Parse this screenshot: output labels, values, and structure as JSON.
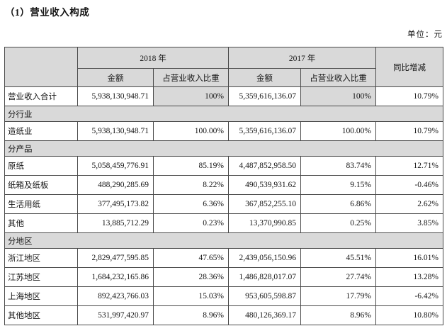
{
  "page": {
    "title": "（1）营业收入构成",
    "unit_label": "单位：元"
  },
  "table": {
    "header": {
      "year_2018": "2018 年",
      "year_2017": "2017 年",
      "amount": "金额",
      "proportion": "占营业收入比重",
      "yoy": "同比增减"
    },
    "rows": [
      {
        "type": "data",
        "label": "营业收入合计",
        "amount_2018": "5,938,130,948.71",
        "pct_2018": "100%",
        "amount_2017": "5,359,616,136.07",
        "pct_2017": "100%",
        "yoy": "10.79%",
        "shaded_pct": true
      },
      {
        "type": "section",
        "label": "分行业"
      },
      {
        "type": "data",
        "label": "造纸业",
        "amount_2018": "5,938,130,948.71",
        "pct_2018": "100.00%",
        "amount_2017": "5,359,616,136.07",
        "pct_2017": "100.00%",
        "yoy": "10.79%"
      },
      {
        "type": "section",
        "label": "分产品"
      },
      {
        "type": "data",
        "label": "原纸",
        "amount_2018": "5,058,459,776.91",
        "pct_2018": "85.19%",
        "amount_2017": "4,487,852,958.50",
        "pct_2017": "83.74%",
        "yoy": "12.71%"
      },
      {
        "type": "data",
        "label": "纸箱及纸板",
        "amount_2018": "488,290,285.69",
        "pct_2018": "8.22%",
        "amount_2017": "490,539,931.62",
        "pct_2017": "9.15%",
        "yoy": "-0.46%"
      },
      {
        "type": "data",
        "label": "生活用纸",
        "amount_2018": "377,495,173.82",
        "pct_2018": "6.36%",
        "amount_2017": "367,852,255.10",
        "pct_2017": "6.86%",
        "yoy": "2.62%"
      },
      {
        "type": "data",
        "label": "其他",
        "amount_2018": "13,885,712.29",
        "pct_2018": "0.23%",
        "amount_2017": "13,370,990.85",
        "pct_2017": "0.25%",
        "yoy": "3.85%"
      },
      {
        "type": "section",
        "label": "分地区"
      },
      {
        "type": "data",
        "label": "浙江地区",
        "amount_2018": "2,829,477,595.85",
        "pct_2018": "47.65%",
        "amount_2017": "2,439,056,150.96",
        "pct_2017": "45.51%",
        "yoy": "16.01%"
      },
      {
        "type": "data",
        "label": "江苏地区",
        "amount_2018": "1,684,232,165.86",
        "pct_2018": "28.36%",
        "amount_2017": "1,486,828,017.07",
        "pct_2017": "27.74%",
        "yoy": "13.28%"
      },
      {
        "type": "data",
        "label": "上海地区",
        "amount_2018": "892,423,766.03",
        "pct_2018": "15.03%",
        "amount_2017": "953,605,598.87",
        "pct_2017": "17.79%",
        "yoy": "-6.42%"
      },
      {
        "type": "data",
        "label": "其他地区",
        "amount_2018": "531,997,420.97",
        "pct_2018": "8.96%",
        "amount_2017": "480,126,369.17",
        "pct_2017": "8.96%",
        "yoy": "10.80%"
      }
    ]
  },
  "colors": {
    "background": "#ffffff",
    "header_fill": "#d9d9d9",
    "border": "#4a4a4a",
    "text": "#141414"
  }
}
